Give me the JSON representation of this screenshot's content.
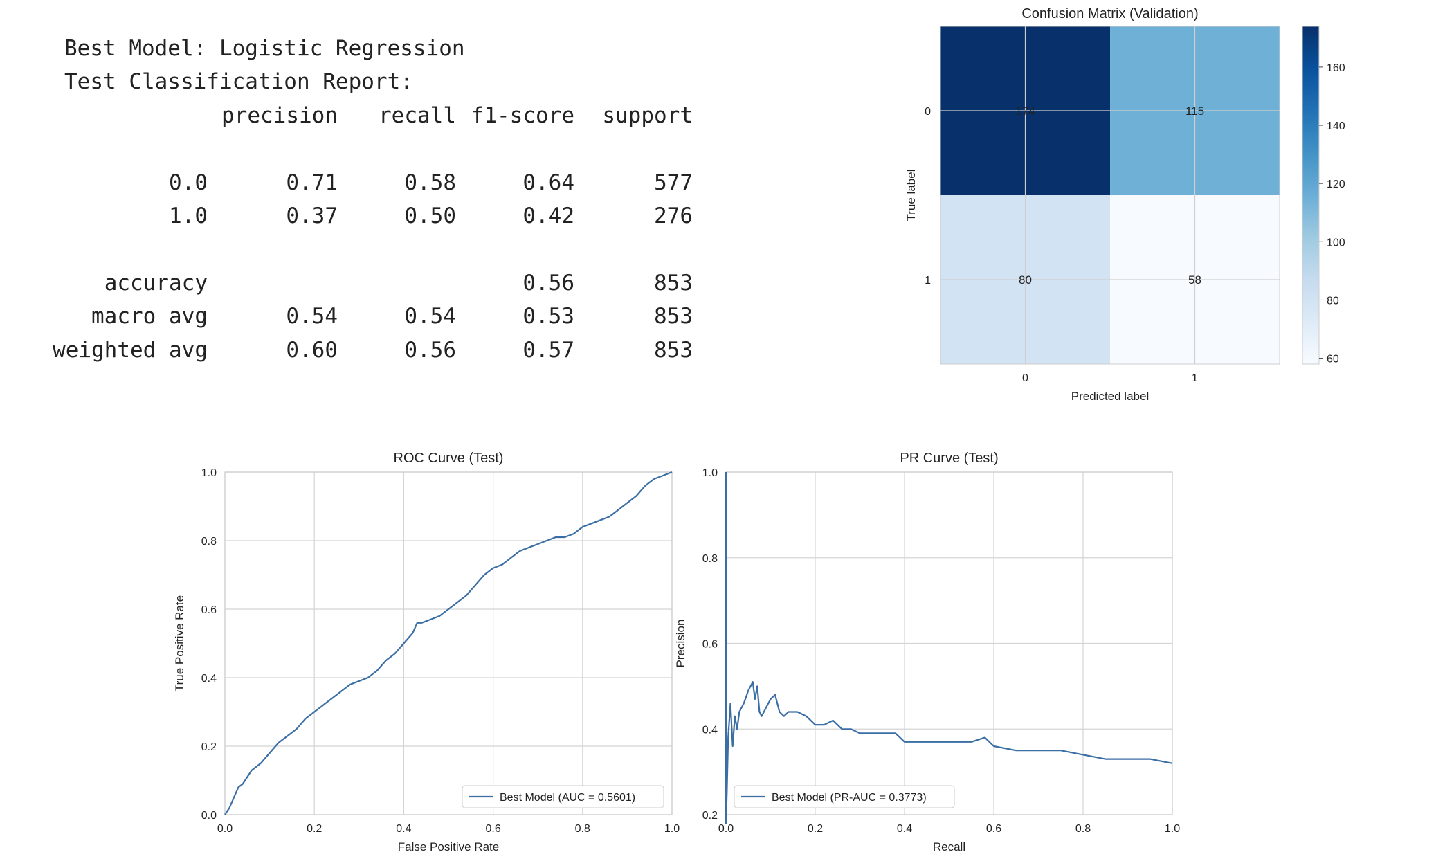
{
  "report": {
    "best_model_line": "Best Model: Logistic Regression",
    "subtitle": "Test Classification Report:",
    "columns": [
      "precision",
      "recall",
      "f1-score",
      "support"
    ],
    "rows": [
      {
        "label": "0.0",
        "values": [
          "0.71",
          "0.58",
          "0.64",
          "577"
        ]
      },
      {
        "label": "1.0",
        "values": [
          "0.37",
          "0.50",
          "0.42",
          "276"
        ]
      }
    ],
    "summary_rows": [
      {
        "label": "accuracy",
        "values": [
          "",
          "",
          "0.56",
          "853"
        ]
      },
      {
        "label": "macro avg",
        "values": [
          "0.54",
          "0.54",
          "0.53",
          "853"
        ]
      },
      {
        "label": "weighted avg",
        "values": [
          "0.60",
          "0.56",
          "0.57",
          "853"
        ]
      }
    ]
  },
  "chart_data": [
    {
      "type": "heatmap",
      "title": "Confusion Matrix (Validation)",
      "xlabel": "Predicted label",
      "ylabel": "True label",
      "x_categories": [
        "0",
        "1"
      ],
      "y_categories": [
        "0",
        "1"
      ],
      "values": [
        [
          174,
          115
        ],
        [
          80,
          58
        ]
      ],
      "colormap": "Blues",
      "colorbar": {
        "min": 58,
        "max": 174,
        "ticks": [
          60,
          80,
          100,
          120,
          140,
          160
        ]
      },
      "grid": true
    },
    {
      "type": "line",
      "title": "ROC Curve (Test)",
      "xlabel": "False Positive Rate",
      "ylabel": "True Positive Rate",
      "xlim": [
        0.0,
        1.0
      ],
      "ylim": [
        0.0,
        1.0
      ],
      "xticks": [
        "0.0",
        "0.2",
        "0.4",
        "0.6",
        "0.8",
        "1.0"
      ],
      "yticks": [
        "0.0",
        "0.2",
        "0.4",
        "0.6",
        "0.8",
        "1.0"
      ],
      "grid": true,
      "legend_position": "lower-right",
      "series": [
        {
          "name": "Best Model (AUC = 0.5601)",
          "color": "#3a6ea5",
          "x": [
            0.0,
            0.01,
            0.02,
            0.03,
            0.04,
            0.05,
            0.06,
            0.08,
            0.1,
            0.12,
            0.14,
            0.16,
            0.18,
            0.2,
            0.22,
            0.24,
            0.26,
            0.28,
            0.3,
            0.32,
            0.34,
            0.36,
            0.38,
            0.4,
            0.42,
            0.43,
            0.44,
            0.46,
            0.48,
            0.5,
            0.52,
            0.54,
            0.56,
            0.58,
            0.6,
            0.62,
            0.64,
            0.66,
            0.68,
            0.7,
            0.72,
            0.74,
            0.76,
            0.78,
            0.8,
            0.82,
            0.84,
            0.86,
            0.88,
            0.9,
            0.92,
            0.94,
            0.96,
            0.98,
            1.0
          ],
          "y": [
            0.0,
            0.02,
            0.05,
            0.08,
            0.09,
            0.11,
            0.13,
            0.15,
            0.18,
            0.21,
            0.23,
            0.25,
            0.28,
            0.3,
            0.32,
            0.34,
            0.36,
            0.38,
            0.39,
            0.4,
            0.42,
            0.45,
            0.47,
            0.5,
            0.53,
            0.56,
            0.56,
            0.57,
            0.58,
            0.6,
            0.62,
            0.64,
            0.67,
            0.7,
            0.72,
            0.73,
            0.75,
            0.77,
            0.78,
            0.79,
            0.8,
            0.81,
            0.81,
            0.82,
            0.84,
            0.85,
            0.86,
            0.87,
            0.89,
            0.91,
            0.93,
            0.96,
            0.98,
            0.99,
            1.0
          ]
        }
      ]
    },
    {
      "type": "line",
      "title": "PR Curve (Test)",
      "xlabel": "Recall",
      "ylabel": "Precision",
      "xlim": [
        0.0,
        1.0
      ],
      "ylim": [
        0.2,
        1.0
      ],
      "xticks": [
        "0.0",
        "0.2",
        "0.4",
        "0.6",
        "0.8",
        "1.0"
      ],
      "yticks": [
        "0.2",
        "0.4",
        "0.6",
        "0.8",
        "1.0"
      ],
      "grid": true,
      "legend_position": "lower-left",
      "series": [
        {
          "name": "Best Model (PR-AUC = 0.3773)",
          "color": "#3a6ea5",
          "x": [
            0.0,
            0.0,
            0.002,
            0.005,
            0.01,
            0.015,
            0.02,
            0.025,
            0.03,
            0.04,
            0.05,
            0.06,
            0.065,
            0.07,
            0.075,
            0.08,
            0.09,
            0.1,
            0.11,
            0.12,
            0.13,
            0.14,
            0.16,
            0.18,
            0.2,
            0.22,
            0.24,
            0.26,
            0.28,
            0.3,
            0.32,
            0.35,
            0.38,
            0.4,
            0.45,
            0.5,
            0.55,
            0.58,
            0.6,
            0.65,
            0.7,
            0.75,
            0.8,
            0.85,
            0.9,
            0.95,
            1.0
          ],
          "y": [
            1.0,
            0.18,
            0.25,
            0.38,
            0.46,
            0.36,
            0.43,
            0.4,
            0.44,
            0.46,
            0.49,
            0.51,
            0.47,
            0.5,
            0.44,
            0.43,
            0.45,
            0.47,
            0.48,
            0.44,
            0.43,
            0.44,
            0.44,
            0.43,
            0.41,
            0.41,
            0.42,
            0.4,
            0.4,
            0.39,
            0.39,
            0.39,
            0.39,
            0.37,
            0.37,
            0.37,
            0.37,
            0.38,
            0.36,
            0.35,
            0.35,
            0.35,
            0.34,
            0.33,
            0.33,
            0.33,
            0.32
          ]
        }
      ]
    }
  ]
}
